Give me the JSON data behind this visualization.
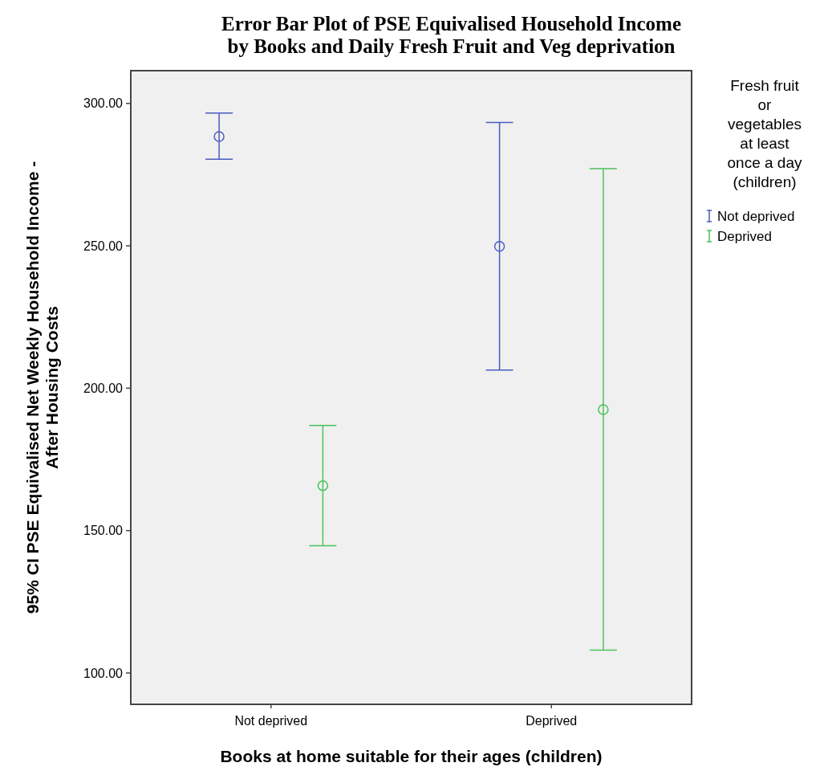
{
  "chart_data": {
    "type": "scatter",
    "title": "Error Bar Plot of PSE Equivalised Household Income\nby Books and Daily Fresh Fruit and Veg deprivation",
    "xlabel": "Books at home suitable for their ages (children)",
    "ylabel": "95% CI PSE Equivalised Net Weekly Household Income -\nAfter Housing Costs",
    "legend_title": "Fresh fruit\nor\nvegetables\nat least\nonce a day\n(children)",
    "categories": [
      "Not deprived",
      "Deprived"
    ],
    "series": [
      {
        "name": "Not deprived",
        "color": "#4a5cc0",
        "values": [
          288.4,
          249.8
        ],
        "errors": [
          [
            280.4,
            296.6
          ],
          [
            206.4,
            293.3
          ]
        ]
      },
      {
        "name": "Deprived",
        "color": "#4cc25a",
        "values": [
          165.8,
          192.5
        ],
        "errors": [
          [
            144.7,
            186.9
          ],
          [
            108.0,
            277.1
          ]
        ]
      }
    ],
    "ylim": [
      89,
      311.5
    ],
    "yticks": [
      {
        "value": 100,
        "label": "100.00"
      },
      {
        "value": 150,
        "label": "150.00"
      },
      {
        "value": 200,
        "label": "200.00"
      },
      {
        "value": 250,
        "label": "250.00"
      },
      {
        "value": 300,
        "label": "300.00"
      }
    ],
    "grid": false,
    "legend": "right",
    "marker": "circle"
  }
}
